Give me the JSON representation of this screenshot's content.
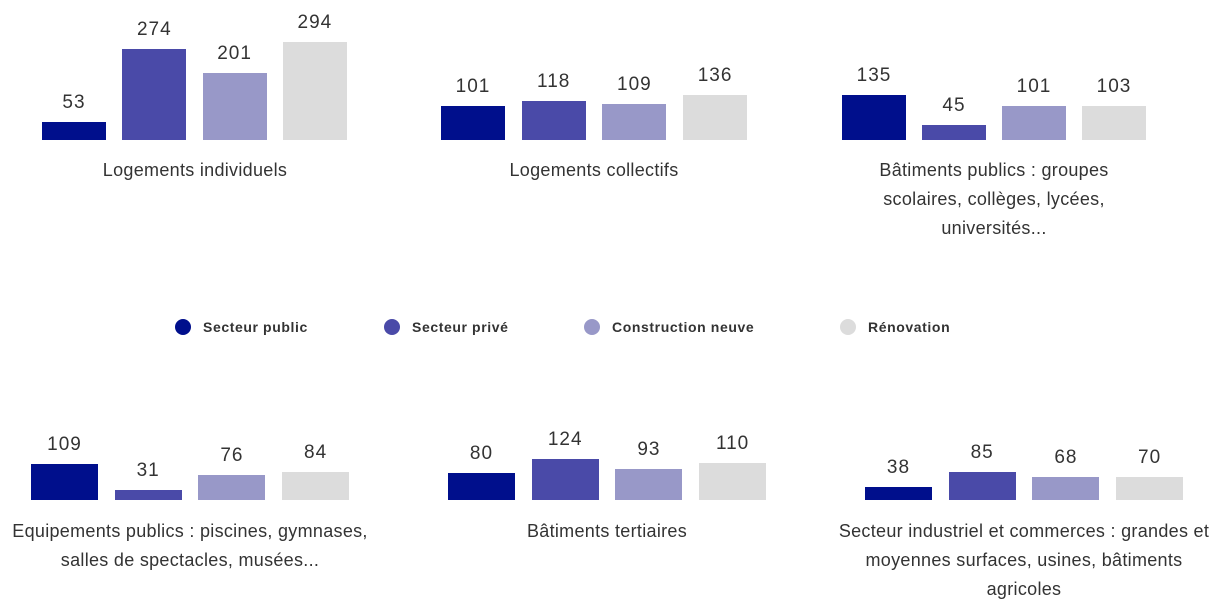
{
  "legend": [
    {
      "name": "Secteur public",
      "color": "#000f8c"
    },
    {
      "name": "Secteur privé",
      "color": "#4a4aa8"
    },
    {
      "name": "Construction neuve",
      "color": "#9898c8"
    },
    {
      "name": "Rénovation",
      "color": "#dcdcdc"
    }
  ],
  "chart_data": [
    {
      "type": "bar",
      "title": "Logements individuels",
      "values": [
        53,
        274,
        201,
        294
      ]
    },
    {
      "type": "bar",
      "title": "Logements collectifs",
      "values": [
        101,
        118,
        109,
        136
      ]
    },
    {
      "type": "bar",
      "title": "Bâtiments publics : groupes scolaires, collèges, lycées, universités...",
      "values": [
        135,
        45,
        101,
        103
      ]
    },
    {
      "type": "bar",
      "title": "Equipements publics : piscines, gymnases, salles de spectacles, musées...",
      "values": [
        109,
        31,
        76,
        84
      ]
    },
    {
      "type": "bar",
      "title": "Bâtiments tertiaires",
      "values": [
        80,
        124,
        93,
        110
      ]
    },
    {
      "type": "bar",
      "title": "Secteur industriel et commerces : grandes et moyennes surfaces, usines, bâtiments agricoles",
      "values": [
        38,
        85,
        68,
        70
      ]
    }
  ]
}
